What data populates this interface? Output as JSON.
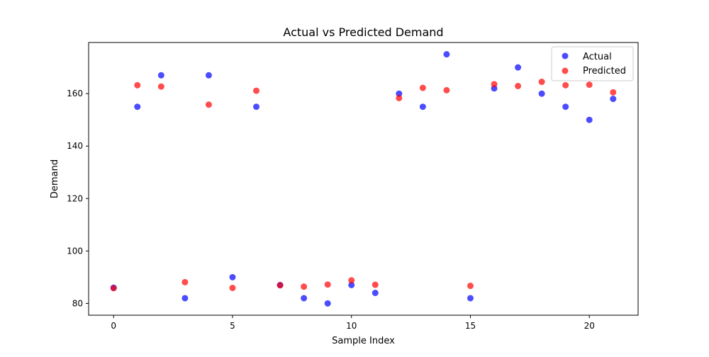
{
  "chart_data": {
    "type": "scatter",
    "title": "Actual vs Predicted Demand",
    "xlabel": "Sample Index",
    "ylabel": "Demand",
    "xlim": [
      -1.05,
      22.05
    ],
    "ylim": [
      75.5,
      179.5
    ],
    "xticks": [
      0,
      5,
      10,
      15,
      20
    ],
    "yticks": [
      80,
      100,
      120,
      140,
      160
    ],
    "grid": false,
    "legend_position": "top-right",
    "series": [
      {
        "name": "Actual",
        "color": "#0000ff",
        "x": [
          0,
          1,
          2,
          3,
          4,
          5,
          6,
          7,
          8,
          9,
          10,
          11,
          12,
          13,
          14,
          15,
          16,
          17,
          18,
          19,
          20,
          21
        ],
        "y": [
          86,
          155,
          167,
          82,
          167,
          90,
          155,
          87,
          82,
          80,
          87,
          84,
          160,
          155,
          175,
          82,
          162,
          170,
          160,
          155,
          150,
          158
        ]
      },
      {
        "name": "Predicted",
        "color": "#ff0000",
        "x": [
          0,
          1,
          2,
          3,
          4,
          5,
          6,
          7,
          8,
          9,
          10,
          11,
          12,
          13,
          14,
          15,
          16,
          17,
          18,
          19,
          20,
          21
        ],
        "y": [
          85.8,
          163.2,
          162.7,
          88.1,
          155.8,
          85.9,
          161.1,
          86.9,
          86.4,
          87.2,
          88.8,
          87.1,
          158.3,
          162.2,
          161.3,
          86.7,
          163.6,
          162.9,
          164.5,
          163.2,
          163.4,
          160.5
        ]
      }
    ]
  }
}
